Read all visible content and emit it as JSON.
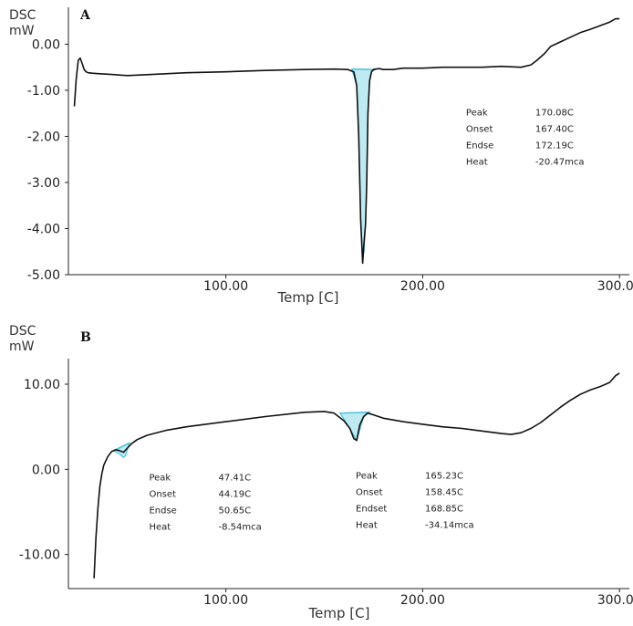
{
  "chart_data": [
    {
      "type": "line",
      "panel_label": "A",
      "ylabel_line1": "DSC",
      "ylabel_line2": "mW",
      "xlabel": "Temp  [C]",
      "xlim": [
        20,
        305
      ],
      "ylim": [
        -5.0,
        0.8
      ],
      "xticks": [
        "100.00",
        "200.00",
        "300.00"
      ],
      "yticks": [
        "0.00",
        "-1.00",
        "-2.00",
        "-3.00",
        "-4.00",
        "-5.00"
      ],
      "series": [
        {
          "x": [
            23,
            24,
            25,
            26,
            27,
            28,
            29,
            30,
            32,
            35,
            40,
            50,
            60,
            80,
            100,
            120,
            140,
            155,
            162,
            165,
            166.5,
            167.5,
            168.5,
            169.5,
            170.2,
            171,
            171.6,
            172.2,
            173,
            174,
            175,
            176,
            178,
            180,
            185,
            190,
            200,
            210,
            220,
            230,
            240,
            250,
            255,
            258,
            262,
            265,
            270,
            275,
            280,
            285,
            290,
            295,
            298,
            300
          ],
          "y": [
            -1.35,
            -0.75,
            -0.35,
            -0.3,
            -0.42,
            -0.55,
            -0.6,
            -0.62,
            -0.63,
            -0.64,
            -0.65,
            -0.68,
            -0.66,
            -0.62,
            -0.6,
            -0.57,
            -0.55,
            -0.54,
            -0.55,
            -0.6,
            -0.9,
            -2.0,
            -3.8,
            -4.75,
            -4.3,
            -3.9,
            -3.0,
            -1.5,
            -0.8,
            -0.6,
            -0.55,
            -0.54,
            -0.53,
            -0.55,
            -0.55,
            -0.52,
            -0.52,
            -0.5,
            -0.5,
            -0.5,
            -0.48,
            -0.5,
            -0.45,
            -0.35,
            -0.2,
            -0.05,
            0.05,
            0.15,
            0.25,
            0.32,
            0.4,
            0.48,
            0.55,
            0.55
          ]
        }
      ],
      "baseline": {
        "x": [
          164,
          176
        ],
        "y": [
          -0.54,
          -0.55
        ]
      },
      "peak_fill": {
        "x": [
          164,
          166.5,
          167.5,
          168.5,
          169.5,
          170.2,
          171,
          171.6,
          172.2,
          173,
          174,
          176
        ],
        "y": [
          -0.54,
          -0.9,
          -2.0,
          -3.8,
          -4.6,
          -4.5,
          -3.9,
          -3.0,
          -1.5,
          -0.8,
          -0.6,
          -0.55
        ]
      },
      "annotations": [
        {
          "rows": [
            [
              "Peak",
              "170.08C"
            ],
            [
              "Onset",
              "167.40C"
            ],
            [
              "Endse",
              "172.19C"
            ],
            [
              "Heat",
              "-20.47mca"
            ]
          ],
          "at": [
            222,
            -1.55
          ]
        }
      ]
    },
    {
      "type": "line",
      "panel_label": "B",
      "ylabel_line1": "DSC",
      "ylabel_line2": "mW",
      "xlabel": "Temp  [C]",
      "xlim": [
        20,
        305
      ],
      "ylim": [
        -14,
        13
      ],
      "xticks": [
        "100.00",
        "200.00",
        "300.00"
      ],
      "yticks": [
        "10.00",
        "0.00",
        "-10.00"
      ],
      "series": [
        {
          "x": [
            33,
            34,
            35,
            36,
            37,
            38,
            40,
            42,
            44,
            46,
            48,
            50,
            52,
            55,
            60,
            70,
            80,
            100,
            120,
            140,
            150,
            155,
            160,
            163,
            165,
            166.5,
            168,
            170,
            172,
            175,
            180,
            190,
            200,
            210,
            220,
            230,
            240,
            245,
            250,
            255,
            260,
            265,
            270,
            275,
            280,
            285,
            290,
            295,
            298,
            300
          ],
          "y": [
            -12.8,
            -8.0,
            -4.5,
            -2.0,
            -0.5,
            0.5,
            1.5,
            2.1,
            2.3,
            2.2,
            2.0,
            2.5,
            3.0,
            3.5,
            4.0,
            4.6,
            5.0,
            5.6,
            6.2,
            6.7,
            6.8,
            6.6,
            5.7,
            4.8,
            3.6,
            3.4,
            5.2,
            6.2,
            6.6,
            6.4,
            6.0,
            5.6,
            5.3,
            5.0,
            4.8,
            4.5,
            4.2,
            4.1,
            4.3,
            4.8,
            5.5,
            6.4,
            7.3,
            8.1,
            8.8,
            9.3,
            9.7,
            10.2,
            11.0,
            11.3
          ]
        }
      ],
      "baselines": [
        {
          "x": [
            43,
            51
          ],
          "y": [
            2.2,
            3.1
          ]
        },
        {
          "x": [
            158,
            173
          ],
          "y": [
            6.6,
            6.7
          ]
        }
      ],
      "peak_fills": [
        {
          "x": [
            43,
            46,
            48,
            49,
            51
          ],
          "y": [
            2.2,
            1.8,
            1.4,
            1.6,
            3.1
          ]
        },
        {
          "x": [
            158,
            163,
            166.5,
            170,
            173
          ],
          "y": [
            6.6,
            4.8,
            3.4,
            6.2,
            6.7
          ]
        }
      ],
      "annotations": [
        {
          "rows": [
            [
              "Peak",
              "47.41C"
            ],
            [
              "Onset",
              "44.19C"
            ],
            [
              "Endse",
              "50.65C"
            ],
            [
              "Heat",
              "-8.54mca"
            ]
          ],
          "at": [
            61,
            -1.3
          ]
        },
        {
          "rows": [
            [
              "Peak",
              "165.23C"
            ],
            [
              "Onset",
              "158.45C"
            ],
            [
              "Endset",
              "168.85C"
            ],
            [
              "Heat",
              "-34.14mca"
            ]
          ],
          "at": [
            166,
            -1.1
          ]
        }
      ]
    }
  ],
  "colors": {
    "trace": "#111111",
    "baseline": "#4fc3d9",
    "peak_fill": "#bfeaf2",
    "axis": "#222222"
  }
}
